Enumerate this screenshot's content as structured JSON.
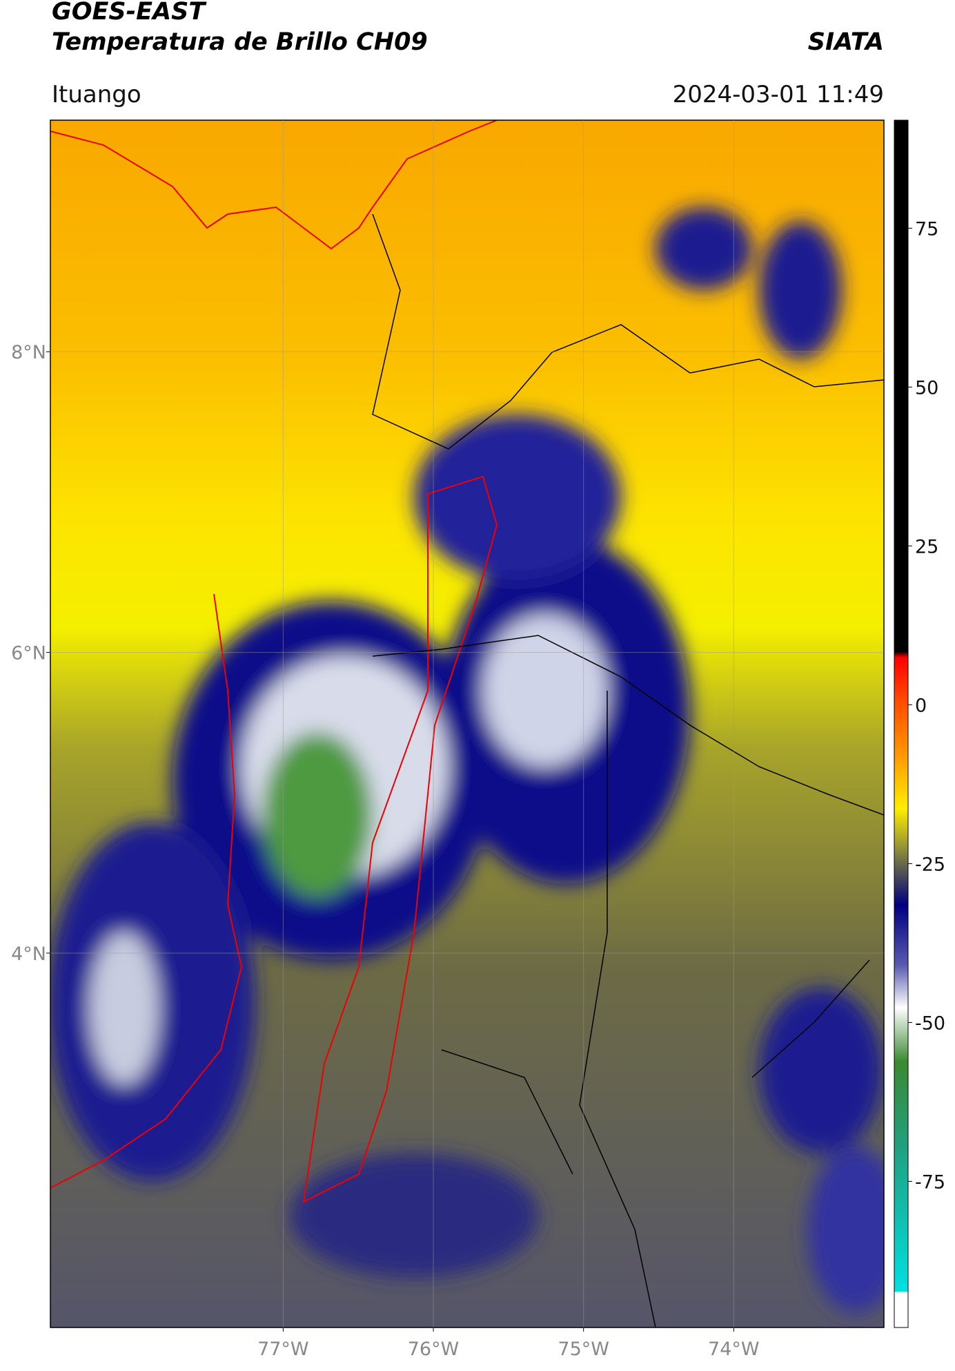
{
  "header": {
    "title": "GOES-EAST",
    "subtitle": "Temperatura de Brillo CH09",
    "source": "SIATA",
    "location": "Ituango",
    "datetime": "2024-03-01 11:49"
  },
  "map": {
    "lonlim": [
      -78.55,
      -73.0
    ],
    "latlim": [
      1.51,
      9.54
    ],
    "xticks": [
      {
        "value": -77,
        "label": "77°W"
      },
      {
        "value": -76,
        "label": "76°W"
      },
      {
        "value": -75,
        "label": "75°W"
      },
      {
        "value": -74,
        "label": "74°W"
      }
    ],
    "yticks": [
      {
        "value": 8,
        "label": "8°N"
      },
      {
        "value": 6,
        "label": "6°N"
      },
      {
        "value": 4,
        "label": "4°N"
      }
    ],
    "grid": true
  },
  "colorbar": {
    "lim": [
      -98,
      92
    ],
    "ticks": [
      75,
      50,
      25,
      0,
      -25,
      -50,
      -75
    ]
  }
}
